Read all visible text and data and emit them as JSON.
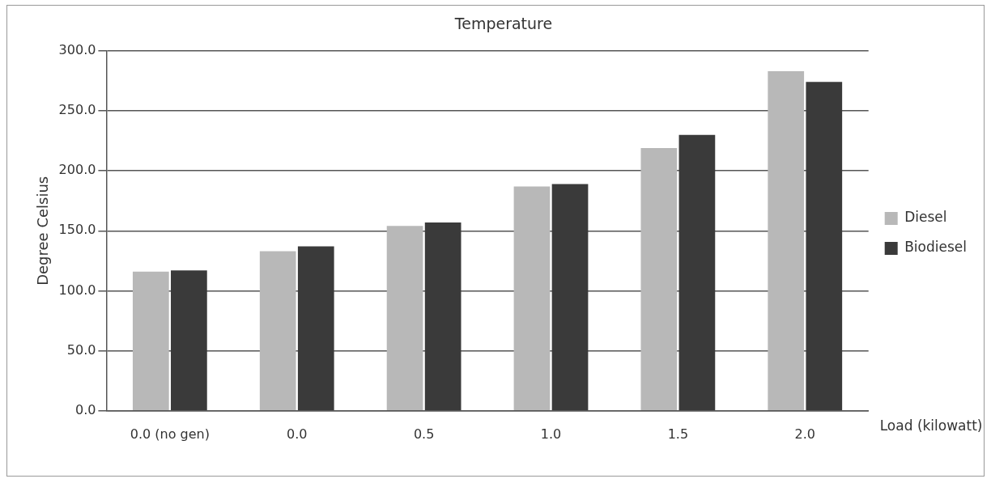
{
  "chart_data": {
    "type": "bar",
    "title": "Temperature",
    "xlabel": "Load (kilowatt)",
    "ylabel": "Degree Celsius",
    "categories": [
      "0.0 (no gen)",
      "0.0",
      "0.5",
      "1.0",
      "1.5",
      "2.0"
    ],
    "series": [
      {
        "name": "Diesel",
        "color": "#b8b8b8",
        "values": [
          116,
          133,
          154,
          187,
          219,
          283
        ]
      },
      {
        "name": "Biodiesel",
        "color": "#3a3a3a",
        "values": [
          117,
          137,
          157,
          189,
          230,
          274
        ]
      }
    ],
    "ylim": [
      0,
      300
    ],
    "yticks": [
      {
        "value": 0,
        "label": "0.0"
      },
      {
        "value": 50,
        "label": "50.0"
      },
      {
        "value": 100,
        "label": "100.0"
      },
      {
        "value": 150,
        "label": "150.0"
      },
      {
        "value": 200,
        "label": "200.0"
      },
      {
        "value": 250,
        "label": "250.0"
      },
      {
        "value": 300,
        "label": "300.0"
      }
    ],
    "grid": "y",
    "legend": "right"
  }
}
